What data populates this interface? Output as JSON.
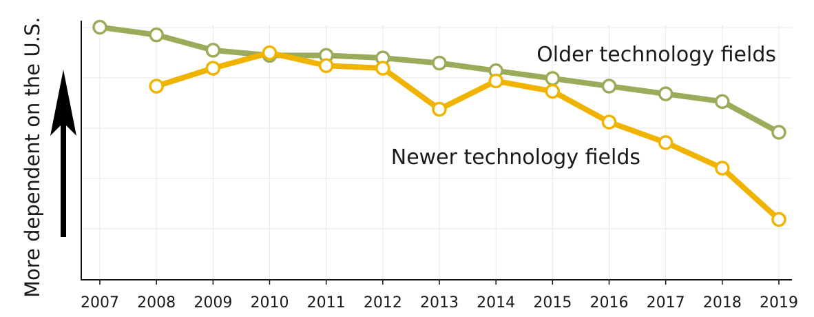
{
  "chart_data": {
    "type": "line",
    "title": "",
    "xlabel": "",
    "ylabel": "More dependent on the U.S.",
    "categories": [
      "2007",
      "2008",
      "2009",
      "2010",
      "2011",
      "2012",
      "2013",
      "2014",
      "2015",
      "2016",
      "2017",
      "2018",
      "2019"
    ],
    "ylim": [
      0,
      100
    ],
    "grid": true,
    "series": [
      {
        "name": "Older technology fields",
        "color": "#9aab5a",
        "values": [
          98,
          95,
          89,
          87,
          87,
          86,
          84,
          81,
          78,
          75,
          72,
          69,
          57
        ]
      },
      {
        "name": "Newer technology fields",
        "color": "#f0b400",
        "values": [
          null,
          75,
          82,
          88,
          83,
          82,
          66,
          77,
          73,
          61,
          53,
          43,
          23
        ]
      }
    ]
  }
}
